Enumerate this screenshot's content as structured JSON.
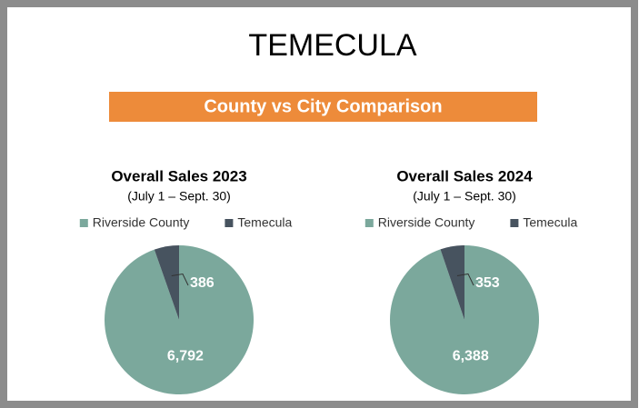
{
  "title": "TEMECULA",
  "banner": "County vs City Comparison",
  "chart_data": [
    {
      "type": "pie",
      "title": "Overall Sales 2023",
      "subtitle": "(July 1 – Sept. 30)",
      "categories": [
        "Riverside County",
        "Temecula"
      ],
      "values": [
        6792,
        386
      ],
      "value_labels": [
        "6,792",
        "386"
      ],
      "colors": [
        "#7ba89c",
        "#47535f"
      ],
      "legend": "top"
    },
    {
      "type": "pie",
      "title": "Overall Sales 2024",
      "subtitle": "(July 1 – Sept. 30)",
      "categories": [
        "Riverside County",
        "Temecula"
      ],
      "values": [
        6388,
        353
      ],
      "value_labels": [
        "6,388",
        "353"
      ],
      "colors": [
        "#7ba89c",
        "#47535f"
      ],
      "legend": "top"
    }
  ]
}
